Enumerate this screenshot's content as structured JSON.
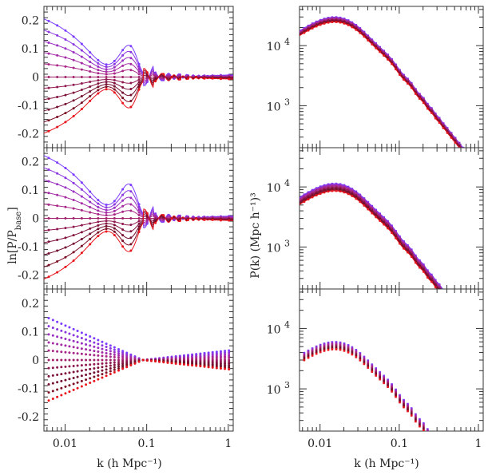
{
  "chart_data": {
    "type": "line",
    "x_tick_labels": [
      "0.01",
      "0.1",
      "1"
    ],
    "xlabel": "k (h Mpc⁻¹)",
    "left_ylabel_parts": [
      "ln[P/P",
      "base",
      "]"
    ],
    "right_ylabel": "P(k) (Mpc h⁻¹)³",
    "left_y_ticks": [
      "0.2",
      "0.1",
      "0",
      "-0.1",
      "-0.2"
    ],
    "right_y_ticks": [
      {
        "base": "10",
        "exp": "4"
      },
      {
        "base": "10",
        "exp": "3"
      }
    ],
    "x_range": [
      0.0055,
      1.15
    ],
    "left_y_range": [
      -0.25,
      0.25
    ],
    "right_y_range": [
      200,
      45000
    ],
    "x_scale": "log",
    "right_y_scale": "log",
    "n_series": 11,
    "palette": [
      "#7b3cff",
      "#8a35e0",
      "#9a2fc2",
      "#a42aa4",
      "#a82686",
      "#a0206a",
      "#8f1850",
      "#80123e",
      "#741030",
      "#7a0e24",
      "#e8141c"
    ],
    "k_points": [
      0.0063,
      0.0071,
      0.008,
      0.009,
      0.0101,
      0.0113,
      0.0127,
      0.0142,
      0.016,
      0.018,
      0.0202,
      0.0227,
      0.0254,
      0.0285,
      0.032,
      0.036,
      0.0403,
      0.0453,
      0.0508,
      0.057,
      0.064,
      0.0718,
      0.0806,
      0.0905,
      0.1015,
      0.114,
      0.128,
      0.143,
      0.161,
      0.181,
      0.203,
      0.228,
      0.256,
      0.287,
      0.322,
      0.361,
      0.405,
      0.455,
      0.511,
      0.573,
      0.643,
      0.722,
      0.81,
      0.909,
      1.02
    ],
    "ratio_amplitudes": [
      0.155,
      0.125,
      0.095,
      0.065,
      0.035,
      0.0,
      -0.03,
      -0.06,
      -0.09,
      -0.12,
      -0.15
    ],
    "spectrum_peak": {
      "k": 0.015,
      "P": 26000
    },
    "spectrum_peak_middle": {
      "k": 0.015,
      "P": 9500
    },
    "spectrum_peak_bottom": {
      "k": 0.015,
      "P": 5000
    },
    "spectrum_slope_high_k": -1.65
  }
}
